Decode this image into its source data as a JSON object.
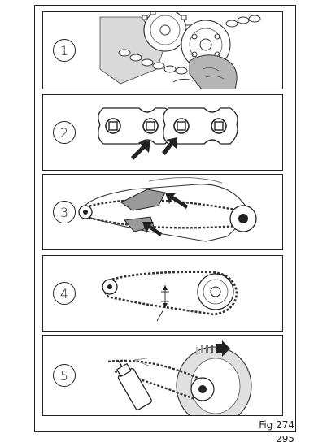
{
  "figure": {
    "label": "Fig 274",
    "steps": [
      {
        "number": "1",
        "illustration": "chain-cleaning-with-cloth"
      },
      {
        "number": "2",
        "illustration": "chain-link-pins-inspection"
      },
      {
        "number": "3",
        "illustration": "swingarm-chain-guide-check"
      },
      {
        "number": "4",
        "illustration": "chain-slack-measurement"
      },
      {
        "number": "5",
        "illustration": "chain-lubrication-spray"
      }
    ]
  },
  "page": {
    "number": "295"
  }
}
